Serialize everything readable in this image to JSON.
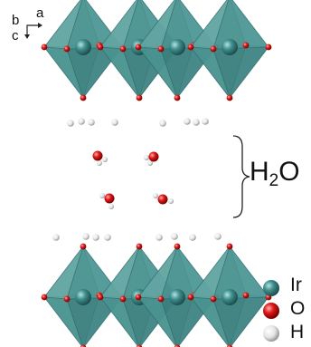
{
  "axes": {
    "b": "b",
    "a": "a",
    "c": "c"
  },
  "interlayer_label": {
    "base": "H",
    "subscript": "2",
    "suffix": "O"
  },
  "legend": [
    {
      "symbol": "Ir",
      "color": "#3f8f8f"
    },
    {
      "symbol": "O",
      "color": "#e01818"
    },
    {
      "symbol": "H",
      "color": "#e8e8e8"
    }
  ],
  "colors": {
    "octahedron_face_light": "#6fb1af",
    "octahedron_face_mid": "#4f9896",
    "octahedron_face_dark": "#3a7f7e",
    "iridium": "#3f8f8f",
    "oxygen": "#e01818",
    "hydrogen": "#e8e8e8",
    "edge": "#2e6a6a"
  }
}
